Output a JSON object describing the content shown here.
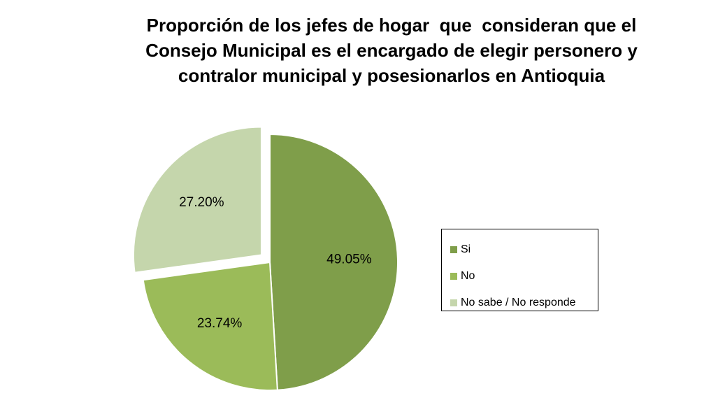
{
  "chart_data": {
    "type": "pie",
    "title": [
      "Proporción de los jefes de hogar  que  consideran que el",
      "Consejo Municipal es el encargado de elegir personero y",
      "contralor municipal y posesionarlos en Antioquia"
    ],
    "slices": [
      {
        "name": "Si",
        "value": 49.05,
        "label": "49.05%",
        "color": "#7f9e4a",
        "exploded": false
      },
      {
        "name": "No",
        "value": 23.74,
        "label": "23.74%",
        "color": "#9bbb59",
        "exploded": false
      },
      {
        "name": "No sabe / No responde",
        "value": 27.2,
        "label": "27.20%",
        "color": "#c5d6ac",
        "exploded": true
      }
    ],
    "legend_placement": "right",
    "start_angle": "12 o'clock",
    "direction": "clockwise"
  }
}
